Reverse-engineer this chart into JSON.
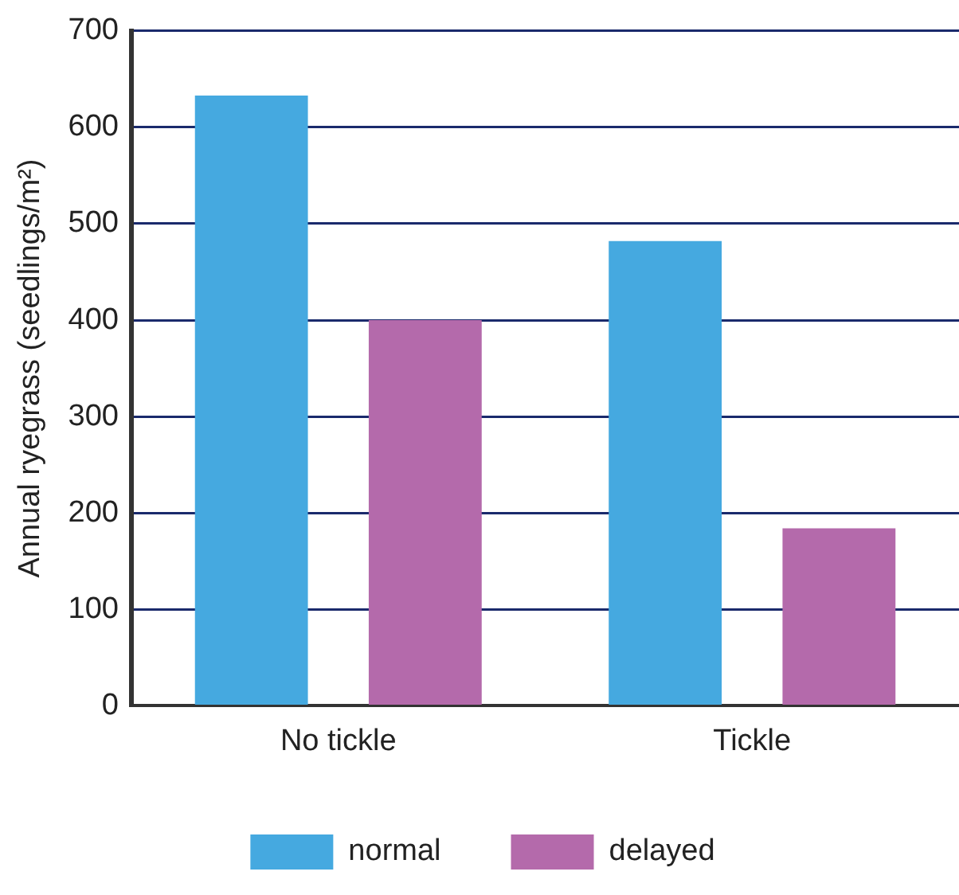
{
  "chart_data": {
    "type": "bar",
    "ylabel": "Annual ryegrass (seedlings/m²)",
    "categories": [
      "No tickle",
      "Tickle"
    ],
    "series": [
      {
        "name": "normal",
        "color": "#45a9e0",
        "values": [
          633,
          482
        ]
      },
      {
        "name": "delayed",
        "color": "#b46aab",
        "values": [
          400,
          184
        ]
      }
    ],
    "ylim": [
      0,
      700
    ],
    "yticks": [
      0,
      100,
      200,
      300,
      400,
      500,
      600,
      700
    ],
    "grid": "y",
    "legend": "bottom"
  }
}
